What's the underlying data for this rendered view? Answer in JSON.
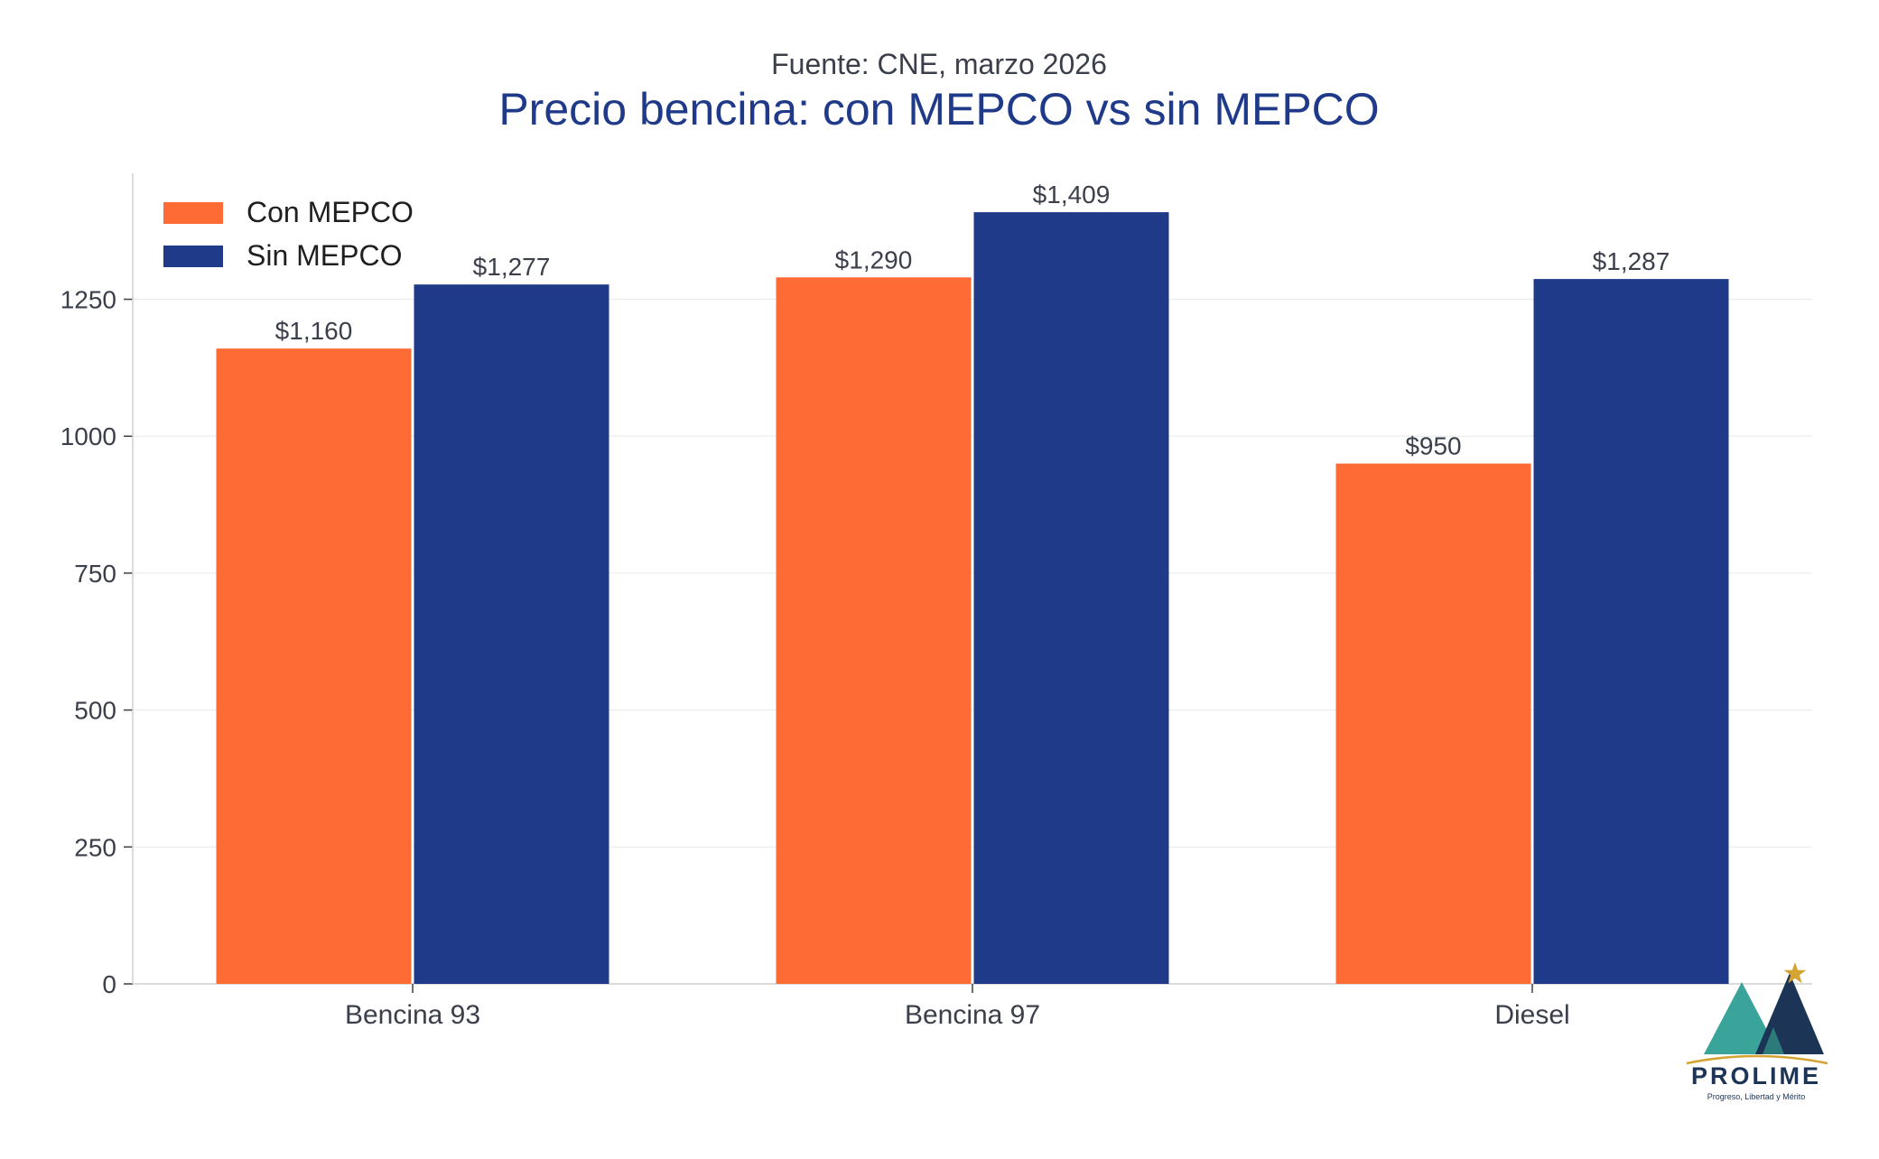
{
  "chart_data": {
    "type": "bar",
    "subtitle": "Fuente: CNE, marzo 2026",
    "title": "Precio bencina: con MEPCO vs sin MEPCO",
    "categories": [
      "Bencina 93",
      "Bencina 97",
      "Diesel"
    ],
    "series": [
      {
        "name": "Con MEPCO",
        "color": "#ff6b35",
        "values": [
          1160,
          1290,
          950
        ],
        "labels": [
          "$1,160",
          "$1,290",
          "$950"
        ]
      },
      {
        "name": "Sin MEPCO",
        "color": "#1f3a89",
        "values": [
          1277,
          1409,
          1287
        ],
        "labels": [
          "$1,277",
          "$1,409",
          "$1,287"
        ]
      }
    ],
    "y_ticks": [
      0,
      250,
      500,
      750,
      1000,
      1250
    ],
    "y_tick_labels": [
      "0",
      "250",
      "500",
      "750",
      "1000",
      "1250"
    ],
    "ylim": [
      0,
      1480
    ],
    "xlabel": "",
    "ylabel": "",
    "grid": true,
    "legend_position": "top-left"
  },
  "logo": {
    "name": "PROLIME",
    "tagline": "Progreso, Libertad y Mérito"
  },
  "colors": {
    "title": "#1f3a89",
    "text": "#3a3f4a",
    "grid": "#ebebeb",
    "axis": "#d0d0d0",
    "logo_teal": "#3aa39a",
    "logo_navy": "#1c3557",
    "logo_gold": "#d4a331"
  }
}
